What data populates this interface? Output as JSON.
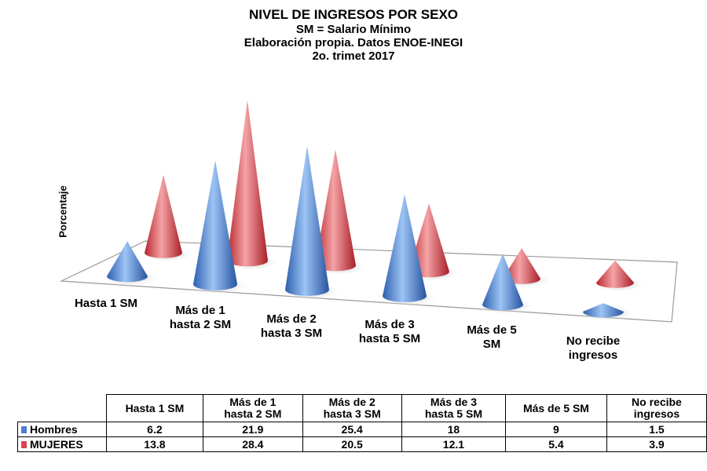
{
  "chart_data": {
    "type": "bar",
    "title": "NIVEL DE INGRESOS POR SEXO",
    "subtitles": [
      "SM = Salario Mínimo",
      "Elaboración propia. Datos ENOE-INEGI",
      "2o. trimet 2017"
    ],
    "ylabel": "Porcentaje",
    "categories": [
      "Hasta 1 SM",
      "Más de 1 hasta 2 SM",
      "Más de 2 hasta 3 SM",
      "Más de 3 hasta 5 SM",
      "Más de 5 SM",
      "No recibe ingresos"
    ],
    "axis_labels": [
      [
        "Hasta 1 SM"
      ],
      [
        "Más de 1",
        "hasta 2 SM"
      ],
      [
        "Más de 2",
        "hasta 3 SM"
      ],
      [
        "Más de 3",
        "hasta 5 SM"
      ],
      [
        "Más de 5",
        "SM"
      ],
      [
        "No recibe",
        "ingresos"
      ]
    ],
    "table_headers": [
      [
        "Hasta 1 SM"
      ],
      [
        "Más de 1",
        "hasta 2 SM"
      ],
      [
        "Más de 2",
        "hasta 3 SM"
      ],
      [
        "Más de 3",
        "hasta 5 SM"
      ],
      [
        "Más de 5 SM"
      ],
      [
        "No recibe",
        "ingresos"
      ]
    ],
    "series": [
      {
        "name": "Hombres",
        "color": "#4a7fd0",
        "values": [
          6.2,
          21.9,
          25.4,
          18,
          9,
          1.5
        ]
      },
      {
        "name": "MUJERES",
        "color": "#d9454f",
        "values": [
          13.8,
          28.4,
          20.5,
          12.1,
          5.4,
          3.9
        ]
      }
    ],
    "style": "3D cones with data table"
  }
}
